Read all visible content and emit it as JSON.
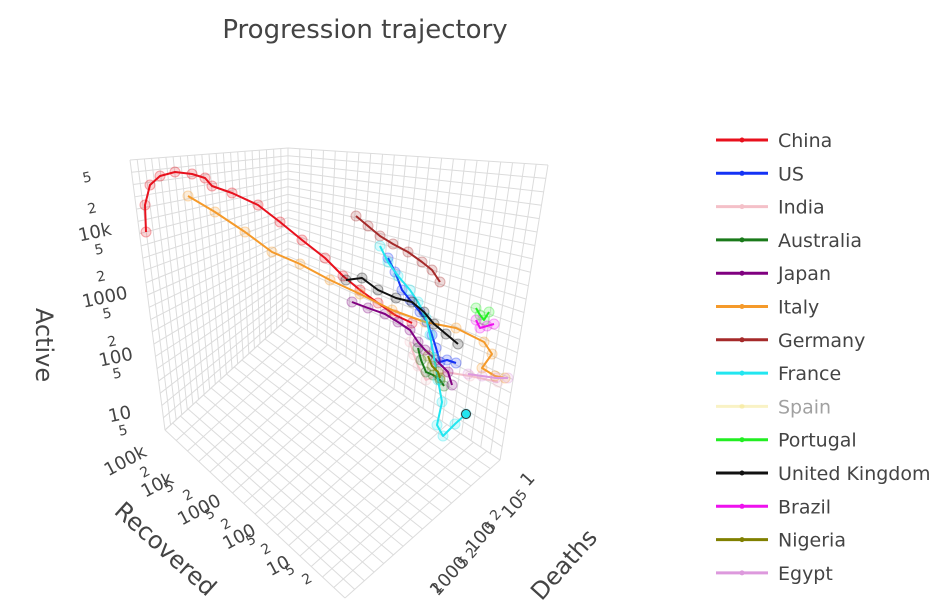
{
  "chart_data": {
    "type": "line3d",
    "title": "Progression trajectory",
    "axes": {
      "x": {
        "label": "Deaths",
        "scale": "log",
        "tick_labels": [
          "1",
          "5",
          "10",
          "2",
          "5",
          "100",
          "2",
          "5",
          "1000",
          "2"
        ]
      },
      "y": {
        "label": "Recovered",
        "scale": "log",
        "tick_labels": [
          "100k",
          "2",
          "10k",
          "5",
          "2",
          "1000",
          "5",
          "2",
          "100",
          "5",
          "2",
          "10",
          "5",
          "2"
        ]
      },
      "z": {
        "label": "Active",
        "scale": "log",
        "tick_labels": [
          "5",
          "2",
          "10k",
          "5",
          "2",
          "1000",
          "5",
          "2",
          "100",
          "5",
          "10",
          "5"
        ]
      }
    },
    "grid": true,
    "legend_position": "right",
    "series": [
      {
        "name": "China",
        "color": "#e8111d",
        "visible": true
      },
      {
        "name": "US",
        "color": "#1432f5",
        "visible": true
      },
      {
        "name": "India",
        "color": "#f4c0c8",
        "visible": true
      },
      {
        "name": "Australia",
        "color": "#1a7a1a",
        "visible": true
      },
      {
        "name": "Japan",
        "color": "#800080",
        "visible": true
      },
      {
        "name": "Italy",
        "color": "#f59a2a",
        "visible": true
      },
      {
        "name": "Germany",
        "color": "#a52a2a",
        "visible": true
      },
      {
        "name": "France",
        "color": "#22e6f0",
        "visible": true
      },
      {
        "name": "Spain",
        "color": "#f5e68c",
        "visible": false
      },
      {
        "name": "Portugal",
        "color": "#22ee22",
        "visible": true
      },
      {
        "name": "United Kingdom",
        "color": "#111111",
        "visible": true
      },
      {
        "name": "Brazil",
        "color": "#ee11ee",
        "visible": true
      },
      {
        "name": "Nigeria",
        "color": "#808000",
        "visible": true
      },
      {
        "name": "Egypt",
        "color": "#dd99dd",
        "visible": true
      }
    ]
  }
}
